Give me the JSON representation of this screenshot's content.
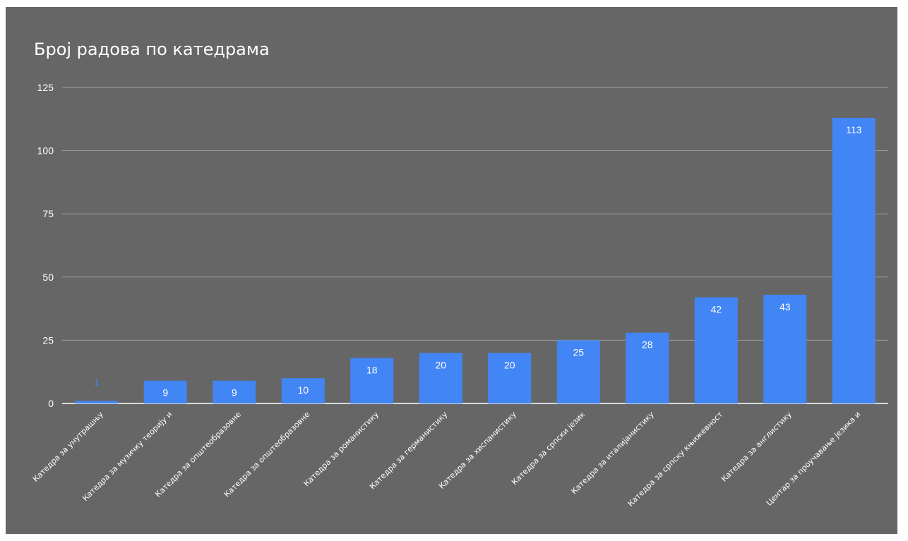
{
  "colors": {
    "background": "#666666",
    "bar": "#4285f4",
    "text": "#ffffff",
    "grid": "#9e9e9e"
  },
  "chart_data": {
    "type": "bar",
    "title": "Број радова по катедрама",
    "xlabel": "",
    "ylabel": "",
    "ylim": [
      0,
      125
    ],
    "yticks": [
      0,
      25,
      50,
      75,
      100,
      125
    ],
    "grid": true,
    "legend": "none",
    "categories": [
      "Катедра за унутрашњу",
      "Катедра за музичку теорију и",
      "Катедра за општеобразовне",
      "Катедра за општеобразовне",
      "Катедра за романистику",
      "Катедра за германистику",
      "Катедра за хиспанистику",
      "Катедра за српски језик",
      "Катедра за италијанистику",
      "Катедра за српску књижевност",
      "Катедра за англистику",
      "Центар за проучавање језика и"
    ],
    "values": [
      1,
      9,
      9,
      10,
      18,
      20,
      20,
      25,
      28,
      42,
      43,
      113
    ]
  }
}
